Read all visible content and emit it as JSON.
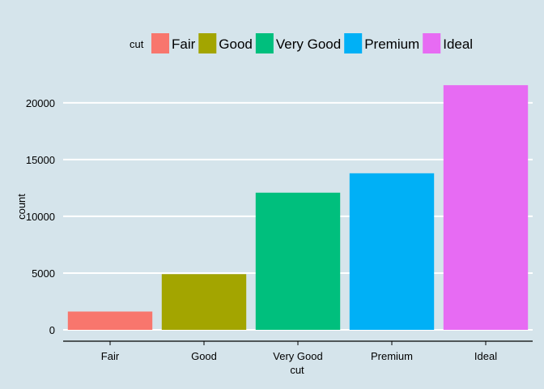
{
  "chart_data": {
    "type": "bar",
    "categories": [
      "Fair",
      "Good",
      "Very Good",
      "Premium",
      "Ideal"
    ],
    "values": [
      1610,
      4906,
      12082,
      13791,
      21551
    ],
    "colors": [
      "#f8766d",
      "#a3a500",
      "#00bf7d",
      "#00b0f6",
      "#e76bf3"
    ],
    "xlabel": "cut",
    "ylabel": "count",
    "ylim": [
      0,
      22630
    ],
    "yticks": [
      0,
      5000,
      10000,
      15000,
      20000
    ],
    "grid": "horizontal major, white",
    "background": "#d5e4eb",
    "legend": {
      "title": "cut",
      "position": "top",
      "items": [
        "Fair",
        "Good",
        "Very Good",
        "Premium",
        "Ideal"
      ]
    }
  }
}
